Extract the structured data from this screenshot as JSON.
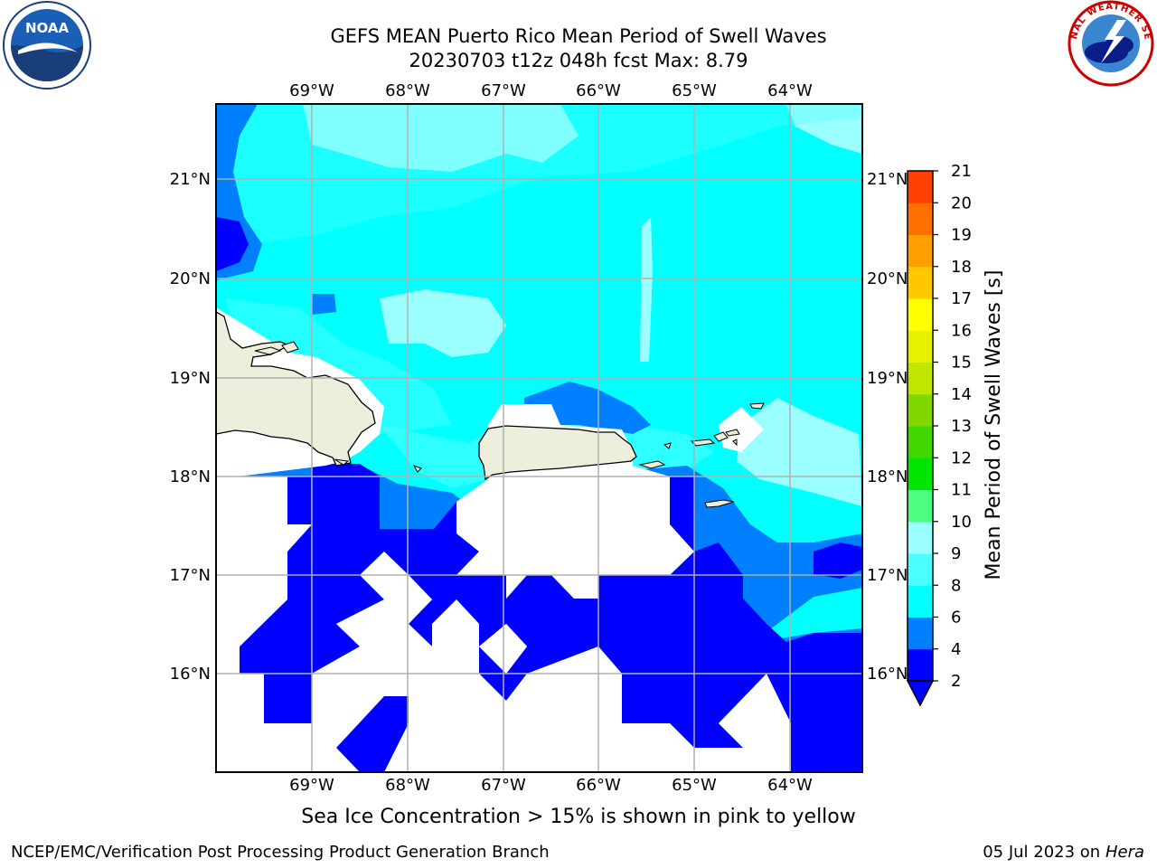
{
  "header": {
    "title_line1": "GEFS MEAN Puerto Rico Mean Period of Swell Waves",
    "title_line2": "20230703 t12z 048h fcst   Max: 8.79"
  },
  "logos": {
    "left": {
      "icon": "noaa-logo-icon",
      "text": "NOAA"
    },
    "right": {
      "icon": "nws-logo-icon",
      "text": "NATIONAL WEATHER SERVICE"
    }
  },
  "map": {
    "lon_labels": [
      "69°W",
      "68°W",
      "67°W",
      "66°W",
      "65°W",
      "64°W"
    ],
    "lat_labels": [
      "21°N",
      "20°N",
      "19°N",
      "18°N",
      "17°N",
      "16°N"
    ],
    "colors": {
      "land": "#eeeedc",
      "no_data": "#ffffff",
      "level_2_4": "#0000ff",
      "level_4_6": "#0080ff",
      "level_6_8": "#00ffff",
      "level_8_10": "#9cffff",
      "grid": "#b0b0b0"
    }
  },
  "colorbar": {
    "label": "Mean Period of Swell Waves [s]",
    "ticks": [
      "2",
      "4",
      "6",
      "8",
      "9",
      "10",
      "11",
      "12",
      "13",
      "14",
      "15",
      "16",
      "17",
      "18",
      "19",
      "20",
      "21"
    ],
    "colors": [
      "#0000ff",
      "#0080ff",
      "#00ffff",
      "#4cffff",
      "#9cffff",
      "#4cff80",
      "#00e600",
      "#40d800",
      "#80d800",
      "#c0e600",
      "#e6f000",
      "#ffff00",
      "#ffc800",
      "#ffa000",
      "#ff7000",
      "#ff4000",
      "#ff0000"
    ]
  },
  "footer": {
    "subtitle": "Sea Ice Concentration > 15% is shown in pink to yellow",
    "left": "NCEP/EMC/Verification Post Processing Product Generation Branch",
    "right_date": "05 Jul 2023 on ",
    "right_system": "Hera"
  }
}
